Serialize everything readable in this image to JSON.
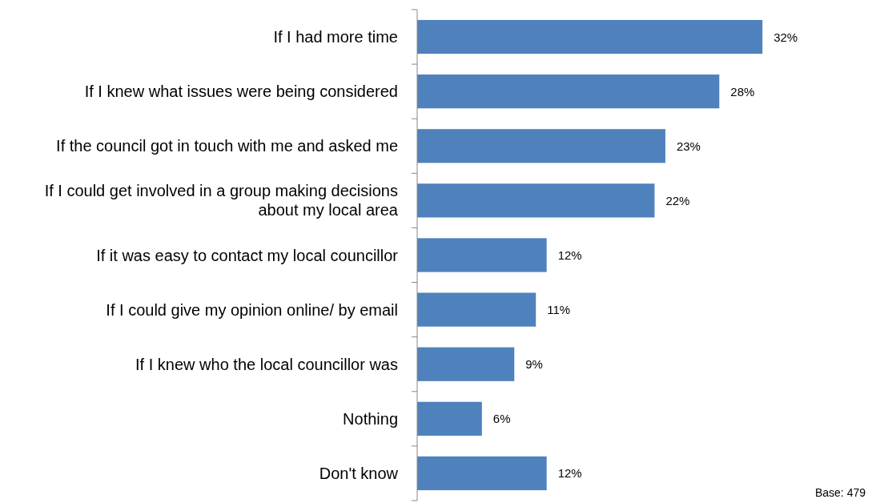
{
  "chart_data": {
    "type": "bar",
    "orientation": "horizontal",
    "categories": [
      "If I had more time",
      "If I knew what issues were being considered",
      "If the council got in touch with me and asked me",
      "If I could get involved in a group making decisions about my local area",
      "If it was easy to contact my local councillor",
      "If I could give my opinion online/ by email",
      "If I knew who the local councillor was",
      "Nothing",
      "Don't know"
    ],
    "values": [
      32,
      28,
      23,
      22,
      12,
      11,
      9,
      6,
      12
    ],
    "value_labels": [
      "32%",
      "28%",
      "23%",
      "22%",
      "12%",
      "11%",
      "9%",
      "6%",
      "12%"
    ],
    "color": "#4f81bd",
    "annotations": [
      "Base: 479"
    ]
  }
}
